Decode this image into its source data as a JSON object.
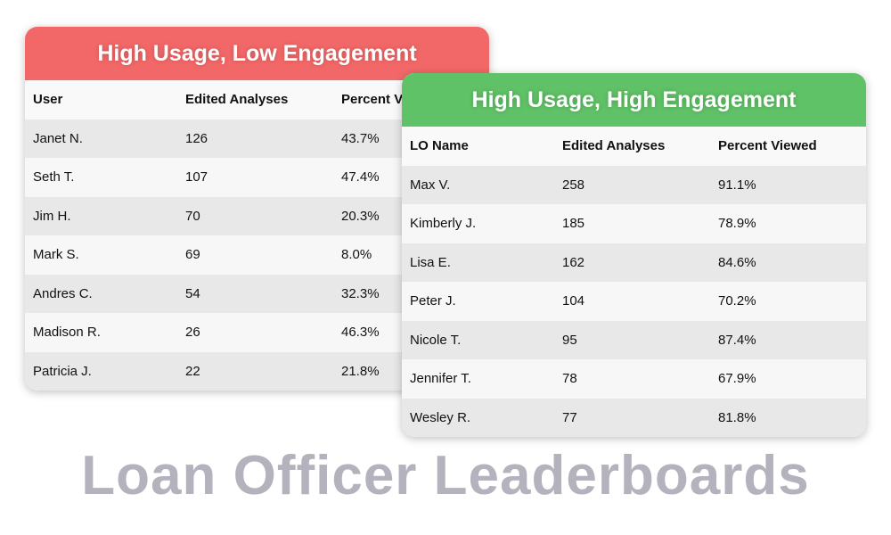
{
  "colors": {
    "low_engagement": "#f26868",
    "high_engagement": "#60c266",
    "title": "#b4b2bd"
  },
  "low": {
    "title": "High Usage, Low Engagement",
    "headers": [
      "User",
      "Edited Analyses",
      "Percent Viewed"
    ],
    "rows": [
      [
        "Janet N.",
        "126",
        "43.7%"
      ],
      [
        "Seth T.",
        "107",
        "47.4%"
      ],
      [
        "Jim H.",
        "70",
        "20.3%"
      ],
      [
        "Mark S.",
        "69",
        "8.0%"
      ],
      [
        "Andres C.",
        "54",
        "32.3%"
      ],
      [
        "Madison R.",
        "26",
        "46.3%"
      ],
      [
        "Patricia J.",
        "22",
        "21.8%"
      ]
    ]
  },
  "high": {
    "title": "High Usage, High Engagement",
    "headers": [
      "LO Name",
      "Edited Analyses",
      "Percent Viewed"
    ],
    "rows": [
      [
        "Max V.",
        "258",
        "91.1%"
      ],
      [
        "Kimberly J.",
        "185",
        "78.9%"
      ],
      [
        "Lisa E.",
        "162",
        "84.6%"
      ],
      [
        "Peter J.",
        "104",
        "70.2%"
      ],
      [
        "Nicole T.",
        "95",
        "87.4%"
      ],
      [
        "Jennifer T.",
        "78",
        "67.9%"
      ],
      [
        "Wesley R.",
        "77",
        "81.8%"
      ]
    ]
  },
  "page_title": "Loan Officer Leaderboards"
}
